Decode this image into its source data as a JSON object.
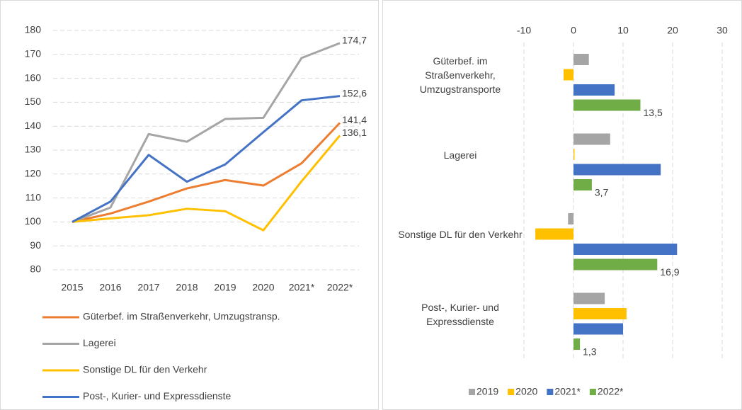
{
  "chart_data": [
    {
      "type": "line",
      "categories": [
        "2015",
        "2016",
        "2017",
        "2018",
        "2019",
        "2020",
        "2021*",
        "2022*"
      ],
      "ylim": [
        80,
        180
      ],
      "yticks": [
        80,
        90,
        100,
        110,
        120,
        130,
        140,
        150,
        160,
        170,
        180
      ],
      "grid": true,
      "legend": "bottom",
      "series": [
        {
          "name": "Güterbef. im Straßenverkehr, Umzugstransp.",
          "color": "#ed7d31",
          "values": [
            100,
            103.5,
            108.5,
            114,
            117.5,
            115.2,
            124.5,
            141.4
          ],
          "value_labels": [
            null,
            null,
            null,
            null,
            null,
            null,
            null,
            "141,4"
          ]
        },
        {
          "name": "Lagerei",
          "color": "#a5a5a5",
          "values": [
            100,
            106,
            136.7,
            133.5,
            143,
            143.5,
            168.5,
            174.7
          ],
          "value_labels": [
            null,
            null,
            null,
            null,
            null,
            null,
            null,
            "174,7"
          ]
        },
        {
          "name": "Sonstige DL für den Verkehr",
          "color": "#ffc000",
          "values": [
            100,
            101.5,
            102.8,
            105.5,
            104.5,
            96.5,
            117,
            136.1
          ],
          "value_labels": [
            null,
            null,
            null,
            null,
            null,
            null,
            null,
            "136,1"
          ]
        },
        {
          "name": "Post-, Kurier- und Expressdienste",
          "color": "#4472c4",
          "values": [
            100,
            108.5,
            128,
            116.8,
            124,
            137.5,
            150.8,
            152.6
          ],
          "value_labels": [
            null,
            null,
            null,
            null,
            null,
            null,
            null,
            "152,6"
          ]
        }
      ]
    },
    {
      "type": "hbar",
      "categories": [
        "Güterbef. im Straßenverkehr, Umzugstransporte",
        "Lagerei",
        "Sonstige DL für den Verkehr",
        "Post-, Kurier- und Expressdienste"
      ],
      "xlim": [
        -10,
        30
      ],
      "xticks": [
        -10,
        0,
        10,
        20,
        30
      ],
      "grid": true,
      "legend": "bottom",
      "series": [
        {
          "name": "2019",
          "color": "#a5a5a5",
          "values": [
            3.1,
            7.4,
            -1.1,
            6.3
          ]
        },
        {
          "name": "2020",
          "color": "#ffc000",
          "values": [
            -2,
            0.2,
            -7.7,
            10.7
          ]
        },
        {
          "name": "2021*",
          "color": "#4472c4",
          "values": [
            8.3,
            17.6,
            20.9,
            10
          ]
        },
        {
          "name": "2022*",
          "color": "#70ad47",
          "values": [
            13.5,
            3.7,
            16.9,
            1.3
          ],
          "value_labels": [
            "13,5",
            "3,7",
            "16,9",
            "1,3"
          ]
        }
      ]
    }
  ]
}
